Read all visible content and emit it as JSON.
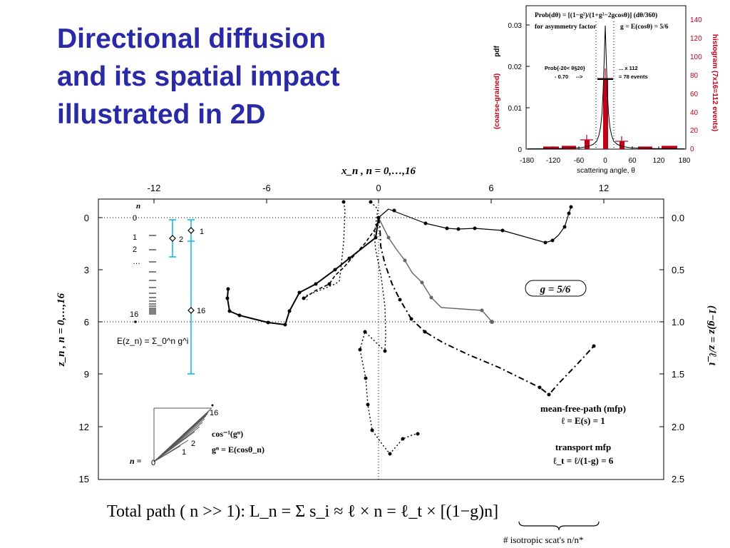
{
  "title": {
    "line1": "Directional diffusion",
    "line2": "and its spatial impact",
    "line3": "illustrated in 2D"
  },
  "inset": {
    "formula_line1": "Prob(dθ) = [(1−g²)/(1+g²−2gcosθ)] (dθ/360)",
    "formula_line2_left": "for asymmetry factor",
    "formula_line2_right": "g = E(cosθ) = 5/6",
    "left_axis_title": "pdf",
    "left_axis_subtitle": "(coarse-grained)",
    "right_axis_title": "histogram (7x16=112 events)",
    "x_axis_title": "scattering angle, θ",
    "x_ticks": [
      "-180",
      "-120",
      "-60",
      "0",
      "60",
      "120",
      "180"
    ],
    "y_left_ticks": [
      "0",
      "0.01",
      "0.02",
      "0.03"
    ],
    "y_right_ticks": [
      "0",
      "20",
      "40",
      "60",
      "80",
      "100",
      "120",
      "140"
    ],
    "annot_left_1": "Prob{-20< θ§20}",
    "annot_left_2": "- 0.70",
    "annot_left_arrow": "-->",
    "annot_right_1": "... x 112",
    "annot_right_2": "= 78 events"
  },
  "main": {
    "top_axis_title": "x_n , n = 0,…,16",
    "x_ticks": [
      "-12",
      "-6",
      "0",
      "6",
      "12"
    ],
    "y_left_ticks": [
      "0",
      "3",
      "6",
      "9",
      "12",
      "15"
    ],
    "y_right_ticks": [
      "0.0",
      "0.5",
      "1.0",
      "1.5",
      "2.0",
      "2.5"
    ],
    "left_axis_title": "z_n , n = 0,…,16",
    "right_axis_title": "(1−g)z = z/ℓ_t",
    "n_label_top": "n",
    "n_labels": [
      "0",
      "1",
      "2",
      "…",
      "16"
    ],
    "diamond_labels": [
      "1",
      "2",
      "16"
    ],
    "mean_formula": "E(z_n) = Σ_0^n g^i",
    "g_label": "g = 5/6",
    "fan_labels": [
      "16",
      "2",
      "1",
      "0"
    ],
    "fan_n_label": "n =",
    "cos_label_1": "cos⁻¹(gⁿ)",
    "cos_label_2": "gⁿ = E(cosθ_n)",
    "mfp_1": "mean-free-path (mfp)",
    "mfp_2": "ℓ = E(s) = 1",
    "tmfp_1": "transport mfp",
    "tmfp_2": "ℓ_t = ℓ/(1-g) = 6",
    "bottom_formula": "Total path ( n >> 1): L_n = Σ s_i ≈ ℓ × n = ℓ_t × [(1−g)n]",
    "brace_label": "# isotropic scat's n/n*"
  },
  "colors": {
    "title": "#2a2aa6",
    "histogram": "#c0001a",
    "errorbar": "#0bb3e8",
    "gray_path": "#666666"
  }
}
